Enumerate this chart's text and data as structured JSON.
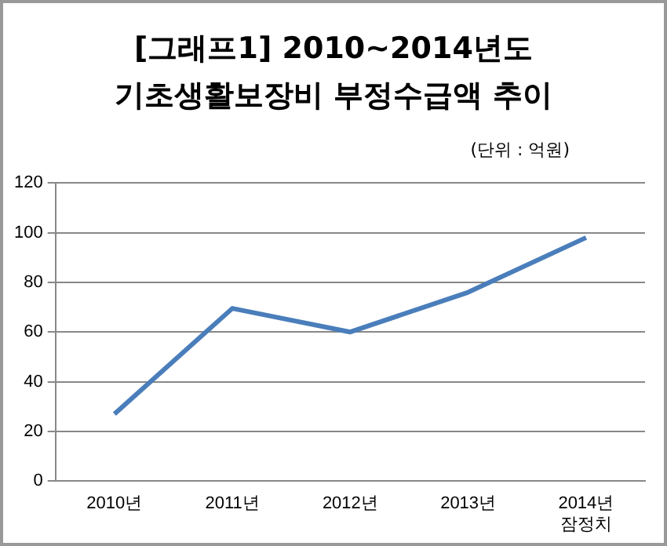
{
  "chart_data": {
    "type": "line",
    "title": "[그래프1] 2010~2014년도\n기초생활보장비 부정수급액 추이",
    "ylabel": "(단위 : 억원)",
    "categories": [
      "2010년",
      "2011년",
      "2012년",
      "2013년",
      "2014년\n잠정치"
    ],
    "series": [
      {
        "color": "#4a7ebb",
        "values": [
          27,
          69.5,
          60,
          76,
          98
        ]
      }
    ],
    "ylim": [
      0,
      120
    ],
    "yticks": [
      0,
      20,
      40,
      60,
      80,
      100,
      120
    ],
    "grid": "y",
    "legend": false,
    "marker": "none",
    "line_style": "solid"
  }
}
